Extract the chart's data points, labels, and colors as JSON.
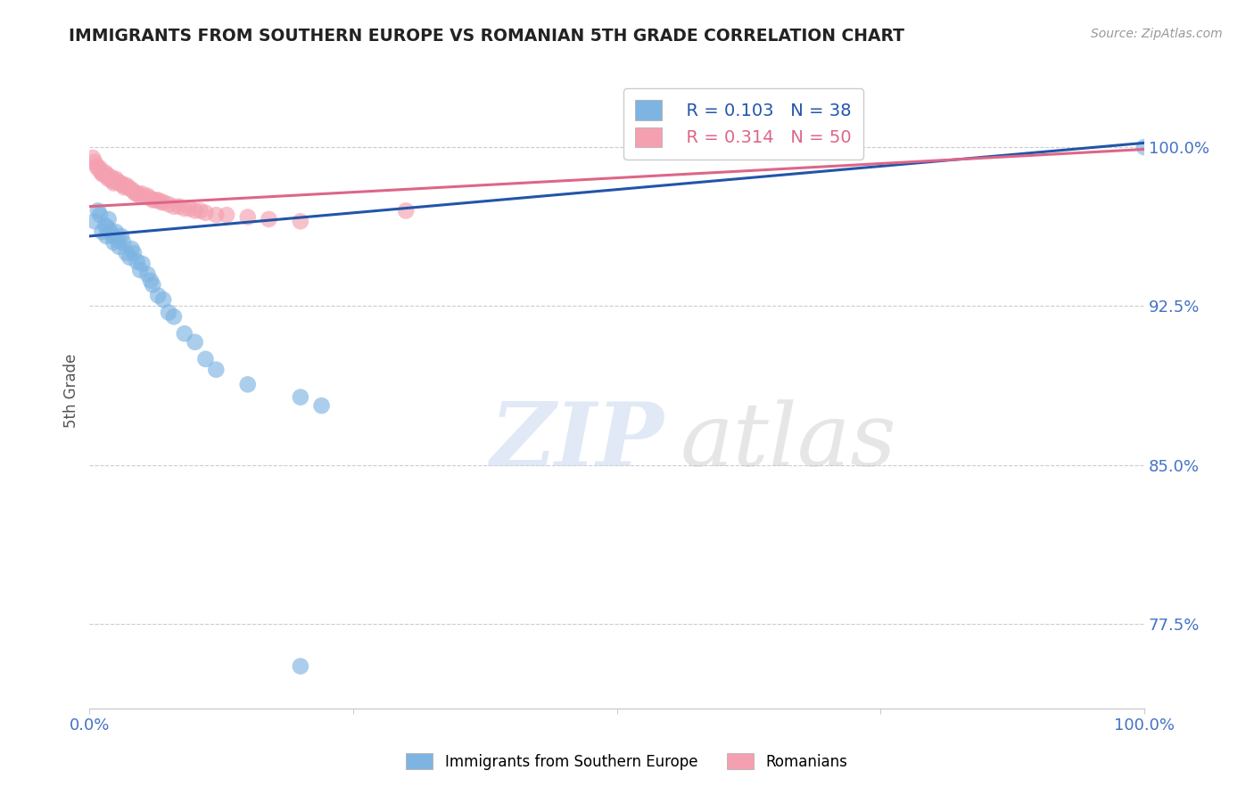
{
  "title": "IMMIGRANTS FROM SOUTHERN EUROPE VS ROMANIAN 5TH GRADE CORRELATION CHART",
  "source": "Source: ZipAtlas.com",
  "ylabel": "5th Grade",
  "xlim": [
    0.0,
    1.0
  ],
  "ylim": [
    0.735,
    1.035
  ],
  "yticks": [
    0.775,
    0.85,
    0.925,
    1.0
  ],
  "ytick_labels": [
    "77.5%",
    "85.0%",
    "92.5%",
    "100.0%"
  ],
  "xticks": [
    0.0,
    0.25,
    0.5,
    0.75,
    1.0
  ],
  "xtick_labels": [
    "0.0%",
    "",
    "",
    "",
    "100.0%"
  ],
  "blue_series_label": "Immigrants from Southern Europe",
  "pink_series_label": "Romanians",
  "blue_R": 0.103,
  "blue_N": 38,
  "pink_R": 0.314,
  "pink_N": 50,
  "blue_color": "#7EB4E2",
  "pink_color": "#F4A0B0",
  "blue_line_color": "#2255AA",
  "pink_line_color": "#DD6688",
  "tick_color": "#4472C4",
  "axis_label_color": "#555555",
  "blue_line_x": [
    0.0,
    1.0
  ],
  "blue_line_y": [
    0.958,
    1.002
  ],
  "pink_line_x": [
    0.0,
    1.0
  ],
  "pink_line_y": [
    0.972,
    0.999
  ],
  "blue_x": [
    0.005,
    0.008,
    0.01,
    0.012,
    0.015,
    0.016,
    0.017,
    0.018,
    0.02,
    0.022,
    0.023,
    0.025,
    0.027,
    0.028,
    0.03,
    0.032,
    0.035,
    0.038,
    0.04,
    0.042,
    0.045,
    0.048,
    0.05,
    0.055,
    0.058,
    0.06,
    0.065,
    0.07,
    0.075,
    0.08,
    0.09,
    0.1,
    0.11,
    0.12,
    0.15,
    0.2,
    0.22,
    1.0
  ],
  "blue_y": [
    0.965,
    0.97,
    0.968,
    0.96,
    0.963,
    0.958,
    0.962,
    0.966,
    0.96,
    0.958,
    0.955,
    0.96,
    0.956,
    0.953,
    0.958,
    0.955,
    0.95,
    0.948,
    0.952,
    0.95,
    0.946,
    0.942,
    0.945,
    0.94,
    0.937,
    0.935,
    0.93,
    0.928,
    0.922,
    0.92,
    0.912,
    0.908,
    0.9,
    0.895,
    0.888,
    0.882,
    0.878,
    1.0
  ],
  "blue_outlier_x": [
    0.2
  ],
  "blue_outlier_y": [
    0.755
  ],
  "pink_x": [
    0.003,
    0.005,
    0.007,
    0.008,
    0.01,
    0.011,
    0.012,
    0.013,
    0.015,
    0.016,
    0.017,
    0.018,
    0.02,
    0.021,
    0.022,
    0.023,
    0.025,
    0.026,
    0.028,
    0.03,
    0.032,
    0.033,
    0.035,
    0.037,
    0.04,
    0.042,
    0.044,
    0.046,
    0.048,
    0.05,
    0.055,
    0.057,
    0.06,
    0.063,
    0.065,
    0.068,
    0.07,
    0.075,
    0.08,
    0.085,
    0.09,
    0.095,
    0.1,
    0.105,
    0.11,
    0.12,
    0.13,
    0.15,
    0.17,
    0.2
  ],
  "pink_y": [
    0.995,
    0.993,
    0.991,
    0.99,
    0.99,
    0.988,
    0.988,
    0.987,
    0.988,
    0.987,
    0.986,
    0.985,
    0.986,
    0.985,
    0.984,
    0.983,
    0.985,
    0.984,
    0.983,
    0.983,
    0.982,
    0.981,
    0.982,
    0.981,
    0.98,
    0.979,
    0.978,
    0.978,
    0.977,
    0.978,
    0.977,
    0.976,
    0.975,
    0.975,
    0.975,
    0.974,
    0.974,
    0.973,
    0.972,
    0.972,
    0.971,
    0.971,
    0.97,
    0.97,
    0.969,
    0.968,
    0.968,
    0.967,
    0.966,
    0.965
  ],
  "pink_outlier_x": [
    0.3
  ],
  "pink_outlier_y": [
    0.97
  ]
}
